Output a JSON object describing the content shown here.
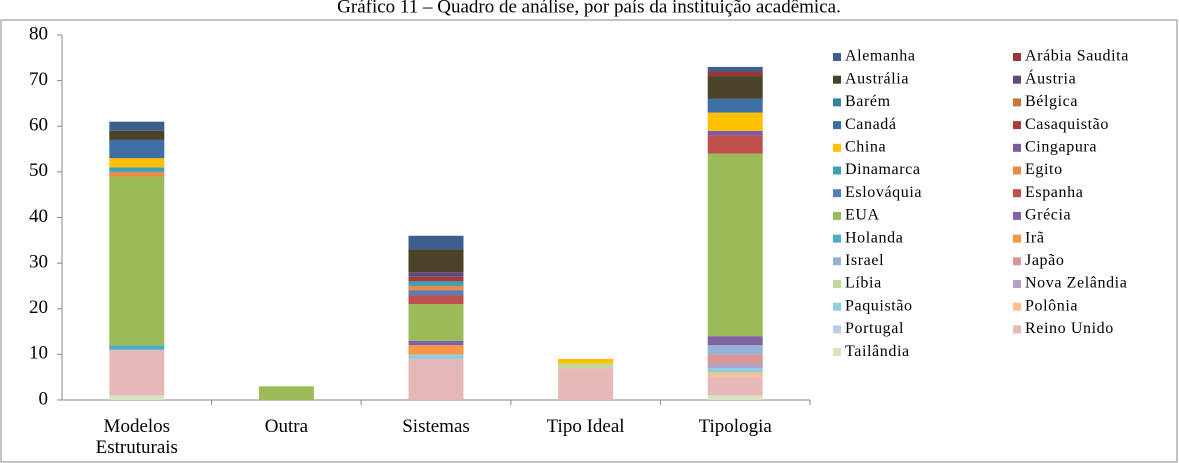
{
  "chart_data": {
    "type": "stacked_bar",
    "title": "Gráfico 11 – Quadro de análise, por país da instituição acadêmica.",
    "categories": [
      "Modelos Estruturais",
      "Outra",
      "Sistemas",
      "Tipo Ideal",
      "Tipologia"
    ],
    "ylim": [
      0,
      80
    ],
    "yticks": [
      0,
      10,
      20,
      30,
      40,
      50,
      60,
      70,
      80
    ],
    "series": [
      {
        "name": "Alemanha",
        "color": "#3c5f8e",
        "values": [
          2,
          0,
          3,
          0,
          1
        ]
      },
      {
        "name": "Arábia Saudita",
        "color": "#953735",
        "values": [
          0,
          0,
          0,
          0,
          1
        ]
      },
      {
        "name": "Austrália",
        "color": "#4a4229",
        "values": [
          2,
          0,
          5,
          0,
          5
        ]
      },
      {
        "name": "Áustria",
        "color": "#5f4a7a",
        "values": [
          0,
          0,
          1,
          0,
          0
        ]
      },
      {
        "name": "Barém",
        "color": "#31859c",
        "values": [
          0,
          0,
          0,
          0,
          0
        ]
      },
      {
        "name": "Bélgica",
        "color": "#c47a3a",
        "values": [
          0,
          0,
          0,
          0,
          0
        ]
      },
      {
        "name": "Canadá",
        "color": "#3d6fa6",
        "values": [
          4,
          0,
          0,
          0,
          3
        ]
      },
      {
        "name": "Casaquistão",
        "color": "#a33d3a",
        "values": [
          0,
          0,
          1,
          0,
          0
        ]
      },
      {
        "name": "China",
        "color": "#ffc000",
        "values": [
          2,
          0,
          0,
          1,
          4
        ]
      },
      {
        "name": "Cingapura",
        "color": "#7a5c9e",
        "values": [
          0,
          0,
          0,
          0,
          1
        ]
      },
      {
        "name": "Dinamarca",
        "color": "#3f9fb5",
        "values": [
          1,
          0,
          1,
          0,
          0
        ]
      },
      {
        "name": "Egito",
        "color": "#e98a4a",
        "values": [
          1,
          0,
          1,
          0,
          0
        ]
      },
      {
        "name": "Eslováquia",
        "color": "#4f81bd",
        "values": [
          0,
          0,
          1,
          0,
          0
        ]
      },
      {
        "name": "Espanha",
        "color": "#c0504d",
        "values": [
          0,
          0,
          2,
          0,
          4
        ]
      },
      {
        "name": "EUA",
        "color": "#9bbb59",
        "values": [
          37,
          3,
          8,
          0,
          40
        ]
      },
      {
        "name": "Grécia",
        "color": "#8064a2",
        "values": [
          0,
          0,
          1,
          0,
          2
        ]
      },
      {
        "name": "Holanda",
        "color": "#4bacc6",
        "values": [
          1,
          0,
          0,
          0,
          0
        ]
      },
      {
        "name": "Irã",
        "color": "#f79646",
        "values": [
          0,
          0,
          2,
          0,
          0
        ]
      },
      {
        "name": "Israel",
        "color": "#95b3d7",
        "values": [
          0,
          0,
          0,
          0,
          2
        ]
      },
      {
        "name": "Japão",
        "color": "#d99694",
        "values": [
          0,
          0,
          0,
          0,
          2
        ]
      },
      {
        "name": "Líbia",
        "color": "#c3d69b",
        "values": [
          0,
          0,
          0,
          1,
          0
        ]
      },
      {
        "name": "Nova Zelândia",
        "color": "#b3a2c7",
        "values": [
          0,
          0,
          0,
          0,
          1
        ]
      },
      {
        "name": "Paquistão",
        "color": "#93cddd",
        "values": [
          0,
          0,
          1,
          0,
          1
        ]
      },
      {
        "name": "Polônia",
        "color": "#fac090",
        "values": [
          0,
          0,
          0,
          0,
          1
        ]
      },
      {
        "name": "Portugal",
        "color": "#b9cde5",
        "values": [
          0,
          0,
          0,
          0,
          0
        ]
      },
      {
        "name": "Reino Unido",
        "color": "#e6b9b8",
        "values": [
          10,
          0,
          9,
          7,
          4
        ]
      },
      {
        "name": "Tailândia",
        "color": "#d7e4bd",
        "values": [
          1,
          0,
          0,
          0,
          1
        ]
      }
    ]
  }
}
